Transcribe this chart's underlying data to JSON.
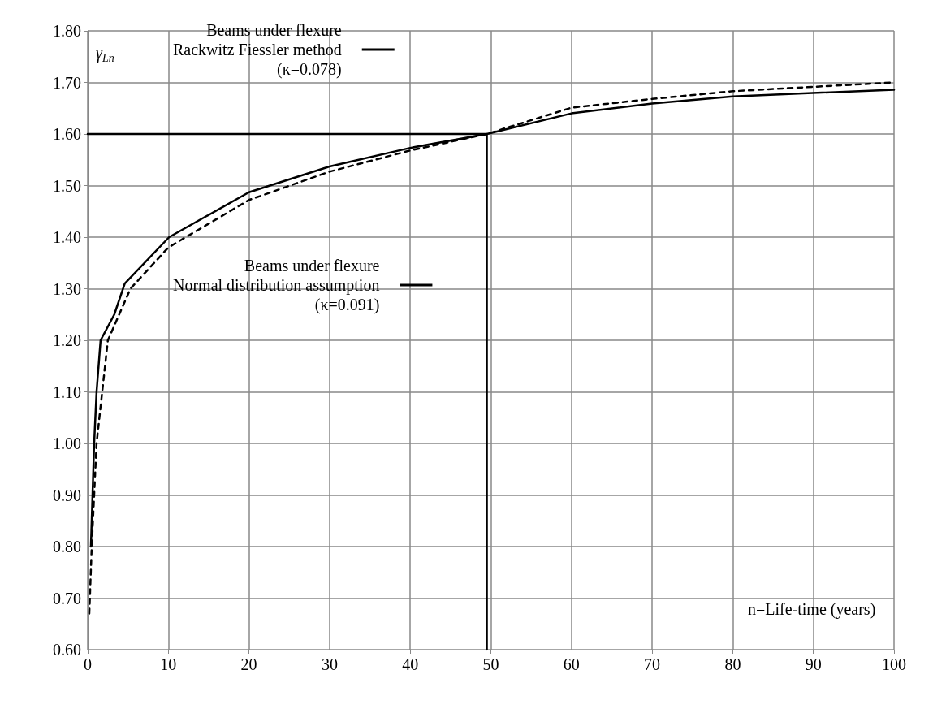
{
  "chart_data": {
    "type": "line",
    "xlabel": "n=Life-time (years)",
    "ylabel": "γ$_{Ln}$",
    "xlim": [
      0,
      100
    ],
    "xticks": [
      0,
      10,
      20,
      30,
      40,
      50,
      60,
      70,
      80,
      90,
      100
    ],
    "ylim": [
      0.6,
      1.8
    ],
    "yticks": [
      {
        "value": 0.6,
        "label": "0.60"
      },
      {
        "value": 0.7,
        "label": "0.70"
      },
      {
        "value": 0.8,
        "label": "0.80"
      },
      {
        "value": 0.9,
        "label": "0.90"
      },
      {
        "value": 1.0,
        "label": "1.00"
      },
      {
        "value": 1.1,
        "label": "1.10"
      },
      {
        "value": 1.2,
        "label": "1.20"
      },
      {
        "value": 1.3,
        "label": "1.30"
      },
      {
        "value": 1.4,
        "label": "1.40"
      },
      {
        "value": 1.5,
        "label": "1.50"
      },
      {
        "value": 1.6,
        "label": "1.60"
      },
      {
        "value": 1.7,
        "label": "1.70"
      },
      {
        "value": 1.8,
        "label": "1.80"
      }
    ],
    "grid": true,
    "legend": "top left",
    "marker": "none",
    "series": [
      {
        "name": "Beams under flexure\nRackwitz Fiessler method\n(κ=0.078)",
        "color": "#000000",
        "line_style": "solid",
        "x": [
          0.4,
          0.6,
          0.8,
          1.1,
          1.6,
          3.3,
          4.6,
          10.1,
          20,
          30,
          40,
          49.5,
          60,
          70,
          80,
          100
        ],
        "values": [
          0.8,
          0.9,
          1.0,
          1.1,
          1.2,
          1.25,
          1.31,
          1.4,
          1.487,
          1.537,
          1.573,
          1.6,
          1.64,
          1.659,
          1.673,
          1.686
        ]
      },
      {
        "name": "Beams under flexure\nNormal distribution assumption\n(κ=0.091)",
        "color": "#000000",
        "line_style": "dashed",
        "x": [
          0.2,
          0.5,
          0.8,
          1.1,
          1.8,
          2.5,
          5.3,
          10,
          20,
          30,
          40,
          49.5,
          60,
          70,
          80,
          100
        ],
        "values": [
          0.67,
          0.8,
          0.9,
          1.0,
          1.1,
          1.2,
          1.3,
          1.38,
          1.472,
          1.527,
          1.568,
          1.6,
          1.651,
          1.668,
          1.683,
          1.7
        ]
      },
      {
        "type": "line",
        "color": "#000000",
        "line_style": "solid",
        "x": [
          0,
          49.5,
          49.5
        ],
        "values": [
          1.6,
          1.6,
          0.6
        ]
      }
    ]
  }
}
